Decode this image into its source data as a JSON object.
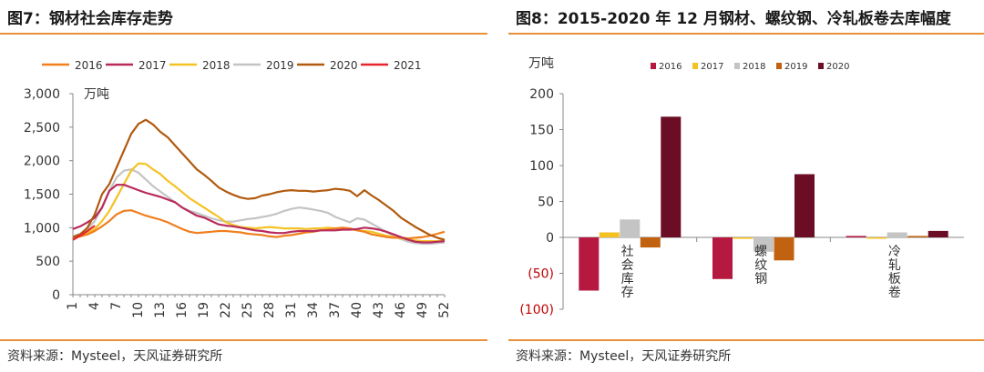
{
  "left": {
    "title": "图7：钢材社会库存走势",
    "source": "资料来源：Mysteel，天风证券研究所",
    "unit": "万吨"
  },
  "right": {
    "title": "图8：2015-2020 年 12 月钢材、螺纹钢、冷轧板卷去库幅度",
    "source": "资料来源：Mysteel，天风证券研究所",
    "unit": "万吨"
  },
  "chart_data": [
    {
      "type": "line",
      "title": "钢材社会库存走势",
      "ylabel": "万吨",
      "ylim": [
        0,
        3000
      ],
      "yticks": [
        0,
        500,
        1000,
        1500,
        2000,
        2500,
        3000
      ],
      "ytick_labels": [
        "0",
        "500",
        "1,000",
        "1,500",
        "2,000",
        "2,500",
        "3,000"
      ],
      "xlim": [
        1,
        52
      ],
      "xticks": [
        1,
        4,
        7,
        10,
        13,
        16,
        19,
        22,
        25,
        28,
        31,
        34,
        37,
        40,
        43,
        46,
        49,
        52
      ],
      "legend_position": "top",
      "series": [
        {
          "name": "2016",
          "color": "#f07f1e",
          "x": [
            1,
            2,
            3,
            4,
            5,
            6,
            7,
            8,
            9,
            10,
            11,
            12,
            13,
            14,
            15,
            16,
            17,
            18,
            19,
            20,
            21,
            22,
            23,
            24,
            25,
            26,
            27,
            28,
            29,
            30,
            31,
            32,
            33,
            34,
            35,
            36,
            37,
            38,
            39,
            40,
            41,
            42,
            43,
            44,
            45,
            46,
            47,
            48,
            49,
            50,
            51,
            52
          ],
          "y": [
            840,
            870,
            900,
            950,
            1020,
            1100,
            1200,
            1250,
            1260,
            1220,
            1180,
            1150,
            1120,
            1080,
            1030,
            980,
            940,
            920,
            930,
            940,
            950,
            950,
            940,
            930,
            910,
            900,
            890,
            870,
            860,
            880,
            890,
            910,
            930,
            940,
            960,
            970,
            990,
            1000,
            990,
            960,
            940,
            900,
            880,
            860,
            850,
            850,
            840,
            850,
            860,
            880,
            910,
            940
          ]
        },
        {
          "name": "2017",
          "color": "#b82a5c",
          "x": [
            1,
            2,
            3,
            4,
            5,
            6,
            7,
            8,
            9,
            10,
            11,
            12,
            13,
            14,
            15,
            16,
            17,
            18,
            19,
            20,
            21,
            22,
            23,
            24,
            25,
            26,
            27,
            28,
            29,
            30,
            31,
            32,
            33,
            34,
            35,
            36,
            37,
            38,
            39,
            40,
            41,
            42,
            43,
            44,
            45,
            46,
            47,
            48,
            49,
            50,
            51,
            52
          ],
          "y": [
            980,
            1020,
            1080,
            1150,
            1300,
            1550,
            1640,
            1640,
            1600,
            1560,
            1520,
            1490,
            1460,
            1420,
            1380,
            1300,
            1240,
            1180,
            1150,
            1100,
            1050,
            1030,
            1020,
            1000,
            980,
            960,
            950,
            930,
            920,
            920,
            940,
            950,
            950,
            950,
            960,
            960,
            960,
            970,
            970,
            980,
            1000,
            990,
            970,
            940,
            900,
            860,
            820,
            790,
            780,
            780,
            790,
            800
          ]
        },
        {
          "name": "2018",
          "color": "#f5c223",
          "x": [
            1,
            2,
            3,
            4,
            5,
            6,
            7,
            8,
            9,
            10,
            11,
            12,
            13,
            14,
            15,
            16,
            17,
            18,
            19,
            20,
            21,
            22,
            23,
            24,
            25,
            26,
            27,
            28,
            29,
            30,
            31,
            32,
            33,
            34,
            35,
            36,
            37,
            38,
            39,
            40,
            41,
            42,
            43,
            44,
            45,
            46,
            47,
            48,
            49,
            50,
            51,
            52
          ],
          "y": [
            850,
            880,
            920,
            980,
            1100,
            1250,
            1450,
            1650,
            1850,
            1960,
            1950,
            1870,
            1800,
            1700,
            1620,
            1530,
            1440,
            1370,
            1300,
            1230,
            1160,
            1080,
            1040,
            1010,
            1000,
            990,
            1000,
            1010,
            1000,
            990,
            990,
            990,
            980,
            990,
            990,
            1000,
            990,
            990,
            980,
            960,
            950,
            940,
            910,
            880,
            860,
            840,
            820,
            810,
            800,
            800,
            800,
            810
          ]
        },
        {
          "name": "2019",
          "color": "#c4c4c4",
          "x": [
            1,
            2,
            3,
            4,
            5,
            6,
            7,
            8,
            9,
            10,
            11,
            12,
            13,
            14,
            15,
            16,
            17,
            18,
            19,
            20,
            21,
            22,
            23,
            24,
            25,
            26,
            27,
            28,
            29,
            30,
            31,
            32,
            33,
            34,
            35,
            36,
            37,
            38,
            39,
            40,
            41,
            42,
            43,
            44,
            45,
            46,
            47,
            48,
            49,
            50,
            51,
            52
          ],
          "y": [
            870,
            910,
            980,
            1100,
            1300,
            1550,
            1750,
            1850,
            1870,
            1820,
            1720,
            1620,
            1540,
            1460,
            1380,
            1300,
            1250,
            1220,
            1180,
            1140,
            1110,
            1090,
            1090,
            1110,
            1130,
            1140,
            1160,
            1180,
            1210,
            1250,
            1280,
            1300,
            1290,
            1270,
            1250,
            1220,
            1160,
            1120,
            1080,
            1140,
            1120,
            1060,
            1000,
            940,
            880,
            830,
            790,
            770,
            760,
            760,
            770,
            780
          ]
        },
        {
          "name": "2020",
          "color": "#b15a0e",
          "x": [
            1,
            2,
            3,
            4,
            5,
            6,
            7,
            8,
            9,
            10,
            11,
            12,
            13,
            14,
            15,
            16,
            17,
            18,
            19,
            20,
            21,
            22,
            23,
            24,
            25,
            26,
            27,
            28,
            29,
            30,
            31,
            32,
            33,
            34,
            35,
            36,
            37,
            38,
            39,
            40,
            41,
            42,
            43,
            44,
            45,
            46,
            47,
            48,
            49,
            50,
            51,
            52
          ],
          "y": [
            860,
            900,
            1000,
            1200,
            1500,
            1650,
            1900,
            2150,
            2400,
            2550,
            2610,
            2540,
            2430,
            2350,
            2230,
            2110,
            1990,
            1870,
            1790,
            1700,
            1600,
            1540,
            1490,
            1450,
            1430,
            1440,
            1480,
            1500,
            1530,
            1550,
            1560,
            1550,
            1550,
            1540,
            1550,
            1560,
            1580,
            1570,
            1550,
            1470,
            1560,
            1480,
            1410,
            1330,
            1250,
            1150,
            1080,
            1010,
            950,
            890,
            850,
            820
          ]
        },
        {
          "name": "2021",
          "color": "#e8252e",
          "x": [
            1,
            2,
            3,
            4
          ],
          "y": [
            820,
            880,
            950,
            1030
          ]
        }
      ]
    },
    {
      "type": "bar",
      "title": "2015-2020 年 12 月钢材、螺纹钢、冷轧板卷去库幅度",
      "ylabel": "万吨",
      "ylim": [
        -100,
        200
      ],
      "yticks": [
        -100,
        -50,
        0,
        50,
        100,
        150,
        200
      ],
      "ytick_labels": [
        "(100)",
        "(50)",
        "0",
        "50",
        "100",
        "150",
        "200"
      ],
      "categories": [
        "社会库存",
        "螺纹钢",
        "冷轧板卷"
      ],
      "legend_position": "top",
      "series": [
        {
          "name": "2016",
          "color": "#b5193f",
          "values": [
            -74,
            -58,
            2
          ]
        },
        {
          "name": "2017",
          "color": "#f5c223",
          "values": [
            7,
            -2,
            -1
          ]
        },
        {
          "name": "2018",
          "color": "#c4c4c4",
          "values": [
            25,
            -20,
            7
          ]
        },
        {
          "name": "2019",
          "color": "#c0620f",
          "values": [
            -14,
            -32,
            2
          ]
        },
        {
          "name": "2020",
          "color": "#6b0d25",
          "values": [
            168,
            88,
            9
          ]
        }
      ]
    }
  ]
}
